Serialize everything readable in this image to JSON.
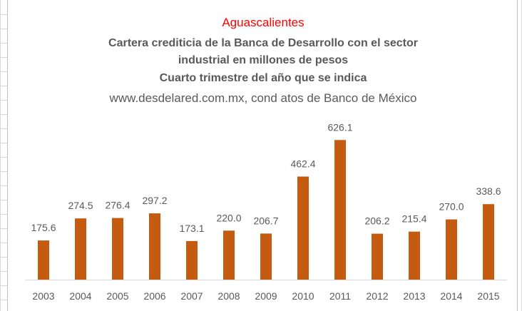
{
  "chart_data": {
    "type": "bar",
    "title": "Aguascalientes",
    "subtitle_lines": [
      "Cartera crediticia de la Banca de Desarrollo con el sector",
      "industrial en millones de pesos",
      "Cuarto trimestre del año que se indica"
    ],
    "source": "www.desdelared.com.mx, cond atos de Banco de México",
    "categories": [
      "2003",
      "2004",
      "2005",
      "2006",
      "2007",
      "2008",
      "2009",
      "2010",
      "2011",
      "2012",
      "2013",
      "2014",
      "2015"
    ],
    "values": [
      175.6,
      274.5,
      276.4,
      297.2,
      173.1,
      220.0,
      206.7,
      462.4,
      626.1,
      206.2,
      215.4,
      270.0,
      338.6
    ],
    "value_labels": [
      "175.6",
      "274.5",
      "276.4",
      "297.2",
      "173.1",
      "220.0",
      "206.7",
      "462.4",
      "626.1",
      "206.2",
      "215.4",
      "270.0",
      "338.6"
    ],
    "ylim": [
      0,
      700
    ],
    "grid": false,
    "legend": "none",
    "colors": {
      "bar": "#c55a11",
      "title": "#ff0000",
      "text": "#595959",
      "axis": "#d9d9d9"
    }
  }
}
